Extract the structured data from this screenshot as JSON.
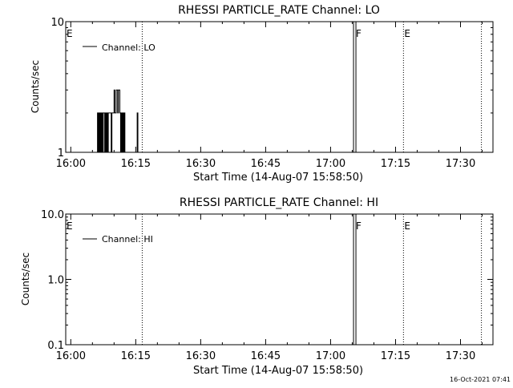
{
  "chart_data": [
    {
      "type": "line",
      "title": "RHESSI PARTICLE_RATE Channel: LO",
      "xlabel": "Start Time (14-Aug-07 15:58:50)",
      "ylabel": "Counts/sec",
      "y_scale": "log",
      "ylim": [
        1,
        10
      ],
      "y_ticks": [
        "1",
        "10"
      ],
      "x_ticks": [
        "16:00",
        "16:15",
        "16:30",
        "16:45",
        "17:00",
        "17:15",
        "17:30"
      ],
      "xlim": [
        "15:58:50",
        "17:37:30"
      ],
      "legend": {
        "label": "Channel: LO",
        "position": "top-left"
      },
      "markers": [
        {
          "label": "E",
          "time": "15:58:50",
          "style": "none"
        },
        {
          "label": "",
          "time": "16:16:30",
          "style": "dotted"
        },
        {
          "label": "F",
          "time": "17:05:40",
          "style": "solid"
        },
        {
          "label": "E",
          "time": "17:16:50",
          "style": "dotted"
        },
        {
          "label": "",
          "time": "17:34:50",
          "style": "dotted"
        }
      ],
      "series": [
        {
          "name": "Channel: LO",
          "x": [
            "16:06:00",
            "16:06:10",
            "16:06:20",
            "16:06:30",
            "16:06:40",
            "16:06:50",
            "16:07:00",
            "16:07:10",
            "16:07:20",
            "16:07:30",
            "16:07:40",
            "16:07:50",
            "16:08:00",
            "16:08:10",
            "16:08:20",
            "16:08:30",
            "16:08:40",
            "16:08:50",
            "16:09:00",
            "16:09:10",
            "16:09:20",
            "16:09:30",
            "16:09:40",
            "16:09:50",
            "16:10:00",
            "16:10:10",
            "16:10:20",
            "16:10:30",
            "16:10:40",
            "16:10:50",
            "16:11:00",
            "16:11:10",
            "16:11:20",
            "16:11:30",
            "16:11:40",
            "16:11:50",
            "16:12:00",
            "16:12:10",
            "16:12:20",
            "16:12:30",
            "16:12:40",
            "16:12:50",
            "16:13:00",
            "16:13:10",
            "16:13:20",
            "16:13:30",
            "16:13:40",
            "16:13:50",
            "16:14:00",
            "16:14:10",
            "16:14:20",
            "16:14:30",
            "16:14:40",
            "16:14:50",
            "16:15:00",
            "16:15:10",
            "16:15:20",
            "16:15:30",
            "16:15:40",
            "16:15:50",
            "16:16:00"
          ],
          "values": [
            1,
            2,
            1,
            2,
            1,
            2,
            1,
            2,
            1,
            2,
            2,
            1,
            2,
            1,
            2,
            1,
            2,
            2,
            2,
            2,
            1,
            2,
            2,
            2,
            3,
            2,
            2,
            3,
            3,
            2,
            3,
            3,
            2,
            1,
            2,
            1,
            2,
            1,
            2,
            1,
            1,
            1,
            1,
            1,
            1,
            1,
            1,
            1,
            1,
            1,
            1,
            1,
            1,
            1,
            1,
            1,
            2,
            1,
            1,
            1,
            1
          ]
        }
      ]
    },
    {
      "type": "line",
      "title": "RHESSI PARTICLE_RATE Channel: HI",
      "xlabel": "Start Time (14-Aug-07 15:58:50)",
      "ylabel": "Counts/sec",
      "y_scale": "log",
      "ylim": [
        0.1,
        10
      ],
      "y_ticks": [
        "0.1",
        "1.0",
        "10.0"
      ],
      "x_ticks": [
        "16:00",
        "16:15",
        "16:30",
        "16:45",
        "17:00",
        "17:15",
        "17:30"
      ],
      "xlim": [
        "15:58:50",
        "17:37:30"
      ],
      "legend": {
        "label": "Channel: HI",
        "position": "top-left"
      },
      "markers": [
        {
          "label": "E",
          "time": "15:58:50",
          "style": "none"
        },
        {
          "label": "",
          "time": "16:16:30",
          "style": "dotted"
        },
        {
          "label": "F",
          "time": "17:05:40",
          "style": "solid"
        },
        {
          "label": "E",
          "time": "17:16:50",
          "style": "dotted"
        },
        {
          "label": "",
          "time": "17:34:50",
          "style": "dotted"
        }
      ],
      "series": [
        {
          "name": "Channel: HI",
          "x": [],
          "values": []
        }
      ]
    }
  ],
  "footer": {
    "timestamp": "16-Oct-2021 07:41"
  }
}
